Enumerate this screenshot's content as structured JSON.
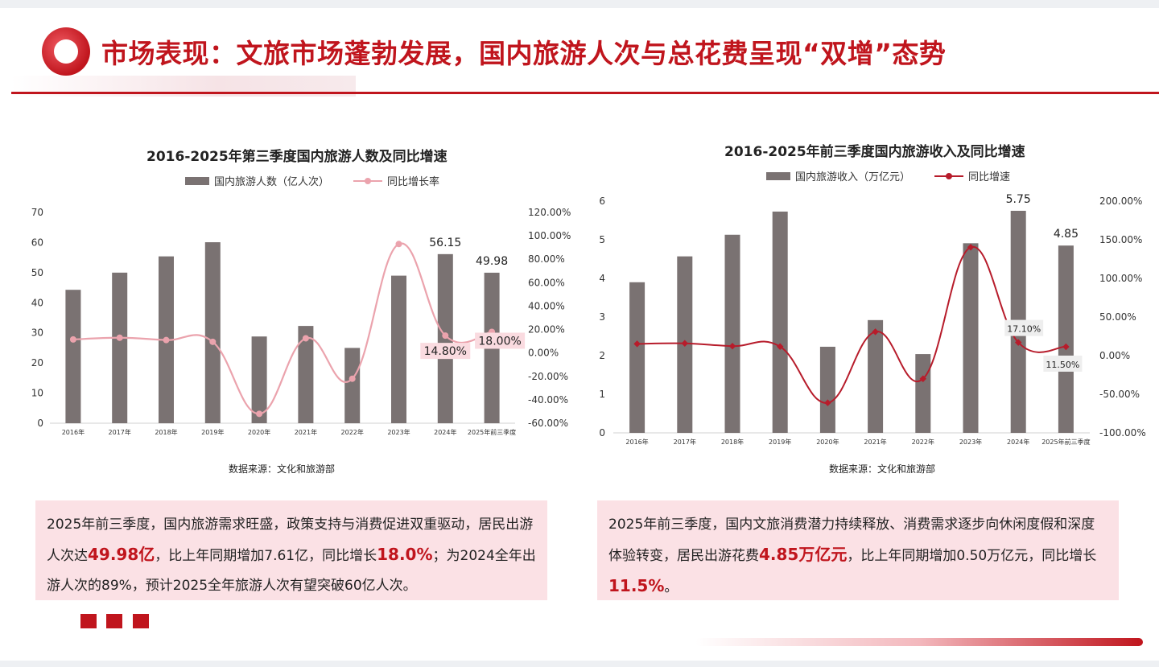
{
  "header": {
    "title": "市场表现：文旅市场蓬勃发展，国内旅游人次与总花费呈现“双增”态势"
  },
  "colors": {
    "brand_red": "#c0151d",
    "bar_gray": "#7a7272",
    "pink_line": "#eba3ad",
    "note_bg": "#fbe1e5"
  },
  "chart_data": [
    {
      "type": "bar",
      "title": "2016-2025年第三季度国内旅游人数及同比增速",
      "categories": [
        "2016年",
        "2017年",
        "2018年",
        "2019年",
        "2020年",
        "2021年",
        "2022年",
        "2023年",
        "2024年",
        "2025年前三季度"
      ],
      "series": [
        {
          "name": "国内旅游人数（亿人次）",
          "type": "bar",
          "axis": "left",
          "values": [
            44.3,
            50.0,
            55.4,
            60.1,
            28.8,
            32.3,
            25.0,
            49.0,
            56.15,
            49.98
          ]
        },
        {
          "name": "同比增长率",
          "type": "line",
          "axis": "right",
          "values": [
            11.5,
            13.0,
            11.0,
            9.5,
            -52.0,
            12.5,
            -22.0,
            93.0,
            14.8,
            18.0
          ]
        }
      ],
      "bar_labels": {
        "8": "56.15",
        "9": "49.98"
      },
      "line_labels": {
        "8": "14.80%",
        "9": "18.00%"
      },
      "ylim_left": [
        0,
        70
      ],
      "yticks_left": [
        "0",
        "10",
        "20",
        "30",
        "40",
        "50",
        "60",
        "70"
      ],
      "ylim_right": [
        -60,
        120
      ],
      "yticks_right": [
        "-60.00%",
        "-40.00%",
        "-20.00%",
        "0.00%",
        "20.00%",
        "40.00%",
        "60.00%",
        "80.00%",
        "100.00%",
        "120.00%"
      ],
      "grid": false,
      "legend_position": "top",
      "source": "数据来源：文化和旅游部"
    },
    {
      "type": "bar",
      "title": "2016-2025年前三季度国内旅游收入及同比增速",
      "categories": [
        "2016年",
        "2017年",
        "2018年",
        "2019年",
        "2020年",
        "2021年",
        "2022年",
        "2023年",
        "2024年",
        "2025年前三季度"
      ],
      "series": [
        {
          "name": "国内旅游收入（万亿元）",
          "type": "bar",
          "axis": "left",
          "values": [
            3.9,
            4.57,
            5.13,
            5.73,
            2.23,
            2.92,
            2.04,
            4.91,
            5.75,
            4.85
          ]
        },
        {
          "name": "同比增速",
          "type": "line",
          "axis": "right",
          "values": [
            15.2,
            15.9,
            12.3,
            11.7,
            -61.1,
            30.9,
            -30.0,
            140.3,
            17.1,
            11.5
          ]
        }
      ],
      "bar_labels": {
        "8": "5.75",
        "9": "4.85"
      },
      "line_labels": {
        "8": "17.10%",
        "9": "11.50%"
      },
      "ylim_left": [
        0,
        6
      ],
      "yticks_left": [
        "0",
        "1",
        "2",
        "3",
        "4",
        "5",
        "6"
      ],
      "ylim_right": [
        -100,
        200
      ],
      "yticks_right": [
        "-100.00%",
        "-50.00%",
        "0.00%",
        "50.00%",
        "100.00%",
        "150.00%",
        "200.00%"
      ],
      "grid": false,
      "legend_position": "top",
      "source": "数据来源：文化和旅游部"
    }
  ],
  "notes": {
    "left": {
      "p1": "2025年前三季度，国内旅游需求旺盛，政策支持与消费促进双重驱动，居民出游人次达",
      "h1": "49.98亿",
      "p2": "，比上年同期增加7.61亿，同比增长",
      "h2": "18.0%",
      "p3": "；为2024全年出游人次的89%，预计2025全年旅游人次有望突破60亿人次。"
    },
    "right": {
      "p1": "2025年前三季度，国内文旅消费潜力持续释放、消费需求逐步向休闲度假和深度体验转变，居民出游花费",
      "h1": "4.85万亿元",
      "p2": "，比上年同期增加0.50万亿元，同比增长",
      "h2": "11.5%",
      "p3": "。"
    }
  }
}
